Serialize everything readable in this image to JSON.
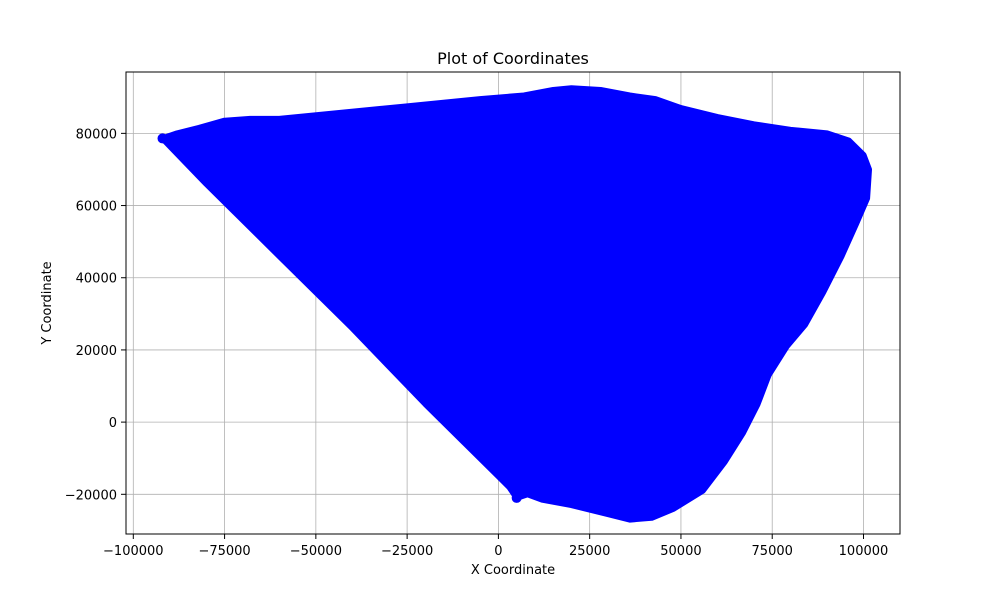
{
  "chart_data": {
    "type": "scatter",
    "title": "Plot of Coordinates",
    "xlabel": "X Coordinate",
    "ylabel": "Y Coordinate",
    "xlim": [
      -102000,
      110000
    ],
    "ylim": [
      -31000,
      97000
    ],
    "xticks": [
      -100000,
      -75000,
      -50000,
      -25000,
      0,
      25000,
      50000,
      75000,
      100000
    ],
    "xtick_labels": [
      "−100000",
      "−75000",
      "−50000",
      "−25000",
      "0",
      "25000",
      "50000",
      "75000",
      "100000"
    ],
    "yticks": [
      -20000,
      0,
      20000,
      40000,
      60000,
      80000
    ],
    "ytick_labels": [
      "−20000",
      "0",
      "20000",
      "40000",
      "60000",
      "80000"
    ],
    "grid": true,
    "series": [
      {
        "color": "#0000ff",
        "marker": "o",
        "filled_region_outline": [
          {
            "x": -92000,
            "y": 78600
          },
          {
            "x": -88000,
            "y": 80000
          },
          {
            "x": -82000,
            "y": 81500
          },
          {
            "x": -75000,
            "y": 83500
          },
          {
            "x": -68000,
            "y": 84000
          },
          {
            "x": -60000,
            "y": 84000
          },
          {
            "x": -45000,
            "y": 85500
          },
          {
            "x": -25000,
            "y": 87500
          },
          {
            "x": -5000,
            "y": 89500
          },
          {
            "x": 7000,
            "y": 90500
          },
          {
            "x": 15000,
            "y": 92000
          },
          {
            "x": 20000,
            "y": 92500
          },
          {
            "x": 28000,
            "y": 92000
          },
          {
            "x": 36000,
            "y": 90500
          },
          {
            "x": 43000,
            "y": 89500
          },
          {
            "x": 50000,
            "y": 87000
          },
          {
            "x": 60000,
            "y": 84500
          },
          {
            "x": 70000,
            "y": 82500
          },
          {
            "x": 80000,
            "y": 81000
          },
          {
            "x": 90000,
            "y": 80000
          },
          {
            "x": 96000,
            "y": 78000
          },
          {
            "x": 100000,
            "y": 74000
          },
          {
            "x": 101500,
            "y": 70000
          },
          {
            "x": 101000,
            "y": 62000
          },
          {
            "x": 98000,
            "y": 55000
          },
          {
            "x": 94000,
            "y": 46000
          },
          {
            "x": 89000,
            "y": 36000
          },
          {
            "x": 84000,
            "y": 27000
          },
          {
            "x": 79000,
            "y": 21000
          },
          {
            "x": 74000,
            "y": 13000
          },
          {
            "x": 71000,
            "y": 5000
          },
          {
            "x": 67000,
            "y": -3000
          },
          {
            "x": 62000,
            "y": -11000
          },
          {
            "x": 56000,
            "y": -19000
          },
          {
            "x": 48000,
            "y": -24000
          },
          {
            "x": 42000,
            "y": -26500
          },
          {
            "x": 36000,
            "y": -27000
          },
          {
            "x": 30000,
            "y": -25500
          },
          {
            "x": 20000,
            "y": -23000
          },
          {
            "x": 12000,
            "y": -21500
          },
          {
            "x": 8000,
            "y": -20000
          },
          {
            "x": 5000,
            "y": -21000
          },
          {
            "x": 3000,
            "y": -18000
          },
          {
            "x": 0,
            "y": -15000
          },
          {
            "x": -20000,
            "y": 5000
          },
          {
            "x": -40000,
            "y": 26000
          },
          {
            "x": -60000,
            "y": 46000
          },
          {
            "x": -80000,
            "y": 66000
          },
          {
            "x": -90000,
            "y": 76500
          }
        ]
      }
    ]
  }
}
